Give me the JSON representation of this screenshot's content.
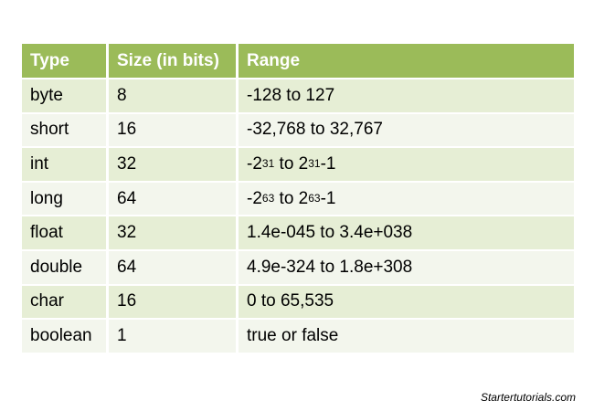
{
  "table": {
    "headers": [
      "Type",
      "Size (in bits)",
      "Range"
    ],
    "rows": [
      {
        "type": "byte",
        "size": "8",
        "range": "-128 to 127"
      },
      {
        "type": "short",
        "size": "16",
        "range": "-32,768 to 32,767"
      },
      {
        "type": "int",
        "size": "32",
        "range_base": "-2",
        "range_exp1": "31",
        "range_mid": " to 2",
        "range_exp2": "31",
        "range_tail": "-1"
      },
      {
        "type": "long",
        "size": "64",
        "range_base": "-2",
        "range_exp1": "63",
        "range_mid": " to 2",
        "range_exp2": "63",
        "range_tail": "-1"
      },
      {
        "type": "float",
        "size": "32",
        "range": "1.4e-045 to 3.4e+038"
      },
      {
        "type": "double",
        "size": "64",
        "range": "4.9e-324 to 1.8e+308"
      },
      {
        "type": "char",
        "size": "16",
        "range": "0 to 65,535"
      },
      {
        "type": "boolean",
        "size": "1",
        "range": "true or false"
      }
    ]
  },
  "colors": {
    "header_bg": "#9bbb59",
    "row_odd_bg": "#e6eed5",
    "row_even_bg": "#f3f6ed"
  },
  "footer": {
    "credit": "Startertutorials.com"
  }
}
